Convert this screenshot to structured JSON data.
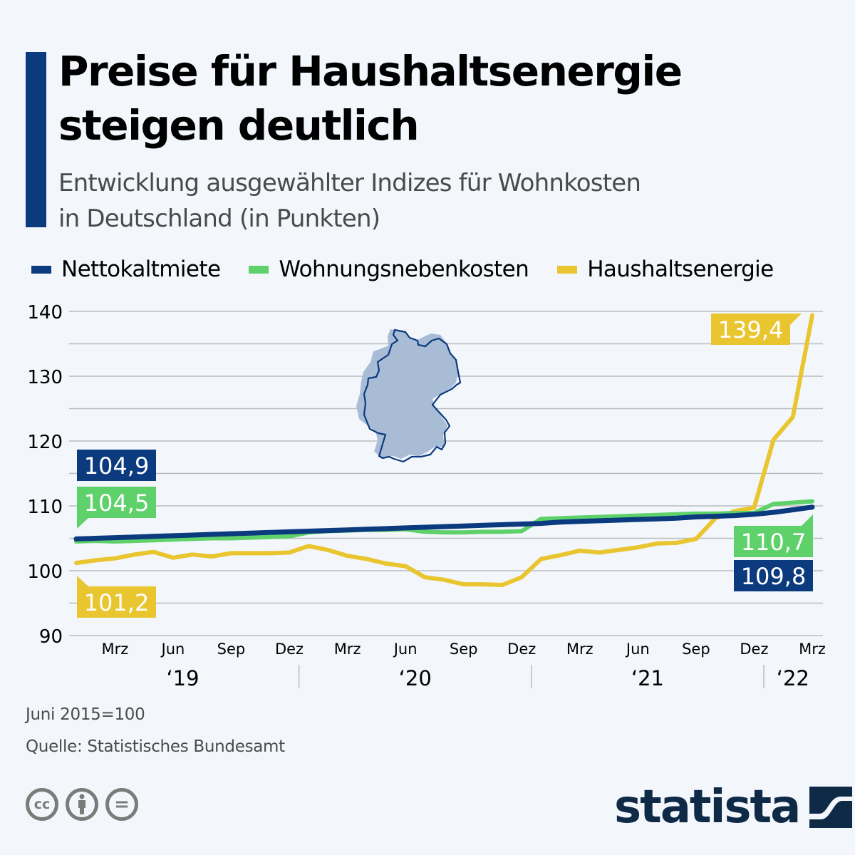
{
  "header": {
    "title_line1": "Preise für Haushaltsenergie",
    "title_line2": "steigen deutlich",
    "subtitle_line1": "Entwicklung ausgewählter Indizes für Wohnkosten",
    "subtitle_line2": "in Deutschland (in Punkten)"
  },
  "colors": {
    "accent": "#0b3a7e",
    "nettokaltmiete": "#0b3a7e",
    "wohnungsnebenkosten": "#5fd16b",
    "haushaltsenergie": "#e9c530",
    "grid": "#b9bcbf",
    "background": "#f3f7fb"
  },
  "legend": [
    {
      "label": "Nettokaltmiete",
      "color": "#0b3a7e"
    },
    {
      "label": "Wohnungsnebenkosten",
      "color": "#5fd16b"
    },
    {
      "label": "Haushaltsenergie",
      "color": "#e9c530"
    }
  ],
  "chart_data": {
    "type": "line",
    "title": "Preise für Haushaltsenergie steigen deutlich",
    "subtitle": "Entwicklung ausgewählter Indizes für Wohnkosten in Deutschland (in Punkten)",
    "xlabel": "",
    "ylabel": "",
    "ylim": [
      90,
      140
    ],
    "yticks": [
      90,
      100,
      110,
      120,
      130,
      140
    ],
    "ytick_labels": [
      "90",
      "100",
      "110",
      "120",
      "130",
      "140"
    ],
    "minor_gridlines_every": 5,
    "grid": true,
    "legend_position": "top-left",
    "x": [
      "2019-01",
      "2019-02",
      "2019-03",
      "2019-04",
      "2019-05",
      "2019-06",
      "2019-07",
      "2019-08",
      "2019-09",
      "2019-10",
      "2019-11",
      "2019-12",
      "2020-01",
      "2020-02",
      "2020-03",
      "2020-04",
      "2020-05",
      "2020-06",
      "2020-07",
      "2020-08",
      "2020-09",
      "2020-10",
      "2020-11",
      "2020-12",
      "2021-01",
      "2021-02",
      "2021-03",
      "2021-04",
      "2021-05",
      "2021-06",
      "2021-07",
      "2021-08",
      "2021-09",
      "2021-10",
      "2021-11",
      "2021-12",
      "2022-01",
      "2022-02",
      "2022-03"
    ],
    "xtick_labels": [
      {
        "label": "Mrz",
        "index": 2
      },
      {
        "label": "Jun",
        "index": 5
      },
      {
        "label": "Sep",
        "index": 8
      },
      {
        "label": "Dez",
        "index": 11
      },
      {
        "label": "Mrz",
        "index": 14
      },
      {
        "label": "Jun",
        "index": 17
      },
      {
        "label": "Sep",
        "index": 20
      },
      {
        "label": "Dez",
        "index": 23
      },
      {
        "label": "Mrz",
        "index": 26
      },
      {
        "label": "Jun",
        "index": 29
      },
      {
        "label": "Sep",
        "index": 32
      },
      {
        "label": "Dez",
        "index": 35
      },
      {
        "label": "Mrz",
        "index": 38
      }
    ],
    "year_labels": [
      {
        "label": "‘19",
        "center_index": 5.5
      },
      {
        "label": "‘20",
        "center_index": 17.5
      },
      {
        "label": "‘21",
        "center_index": 29.5
      },
      {
        "label": "‘22",
        "center_index": 37
      }
    ],
    "year_separators_after_index": [
      11.5,
      23.5,
      35.5
    ],
    "series": [
      {
        "name": "Nettokaltmiete",
        "color": "#0b3a7e",
        "values": [
          104.9,
          105.0,
          105.1,
          105.2,
          105.3,
          105.4,
          105.5,
          105.6,
          105.7,
          105.8,
          105.9,
          106.0,
          106.1,
          106.2,
          106.3,
          106.4,
          106.5,
          106.6,
          106.7,
          106.8,
          106.9,
          107.0,
          107.1,
          107.2,
          107.3,
          107.5,
          107.6,
          107.7,
          107.8,
          107.9,
          108.0,
          108.1,
          108.3,
          108.4,
          108.5,
          108.7,
          109.0,
          109.4,
          109.8
        ],
        "start_label": "104,9",
        "end_label": "109,8"
      },
      {
        "name": "Wohnungsnebenkosten",
        "color": "#5fd16b",
        "values": [
          104.5,
          104.6,
          104.5,
          104.6,
          104.7,
          104.8,
          104.9,
          105.0,
          105.0,
          105.1,
          105.2,
          105.3,
          105.9,
          106.1,
          106.2,
          106.3,
          106.3,
          106.4,
          106.0,
          105.9,
          105.9,
          106.0,
          106.0,
          106.1,
          108.0,
          108.1,
          108.2,
          108.3,
          108.4,
          108.5,
          108.6,
          108.7,
          108.8,
          108.8,
          108.9,
          108.9,
          110.3,
          110.5,
          110.7
        ],
        "start_label": "104,5",
        "end_label": "110,7"
      },
      {
        "name": "Haushaltsenergie",
        "color": "#e9c530",
        "values": [
          101.2,
          101.6,
          101.9,
          102.5,
          102.9,
          102.0,
          102.5,
          102.2,
          102.7,
          102.7,
          102.7,
          102.8,
          103.8,
          103.2,
          102.3,
          101.8,
          101.1,
          100.7,
          99.0,
          98.6,
          97.9,
          97.9,
          97.8,
          99.0,
          101.8,
          102.4,
          103.1,
          102.8,
          103.2,
          103.6,
          104.2,
          104.3,
          104.9,
          108.1,
          109.2,
          109.7,
          120.2,
          123.7,
          139.4
        ],
        "start_label": "101,2",
        "end_label": "139,4"
      }
    ],
    "annotations": [
      "104,9",
      "104,5",
      "101,2",
      "139,4",
      "110,7",
      "109,8"
    ]
  },
  "footer": {
    "note": "Juni 2015=100",
    "source": "Quelle: Statistisches Bundesamt",
    "license_icons": [
      "cc-icon",
      "attribution-icon",
      "no-derivatives-icon"
    ],
    "license_glyphs": [
      "cc",
      "",
      "="
    ],
    "brand": "statista"
  }
}
